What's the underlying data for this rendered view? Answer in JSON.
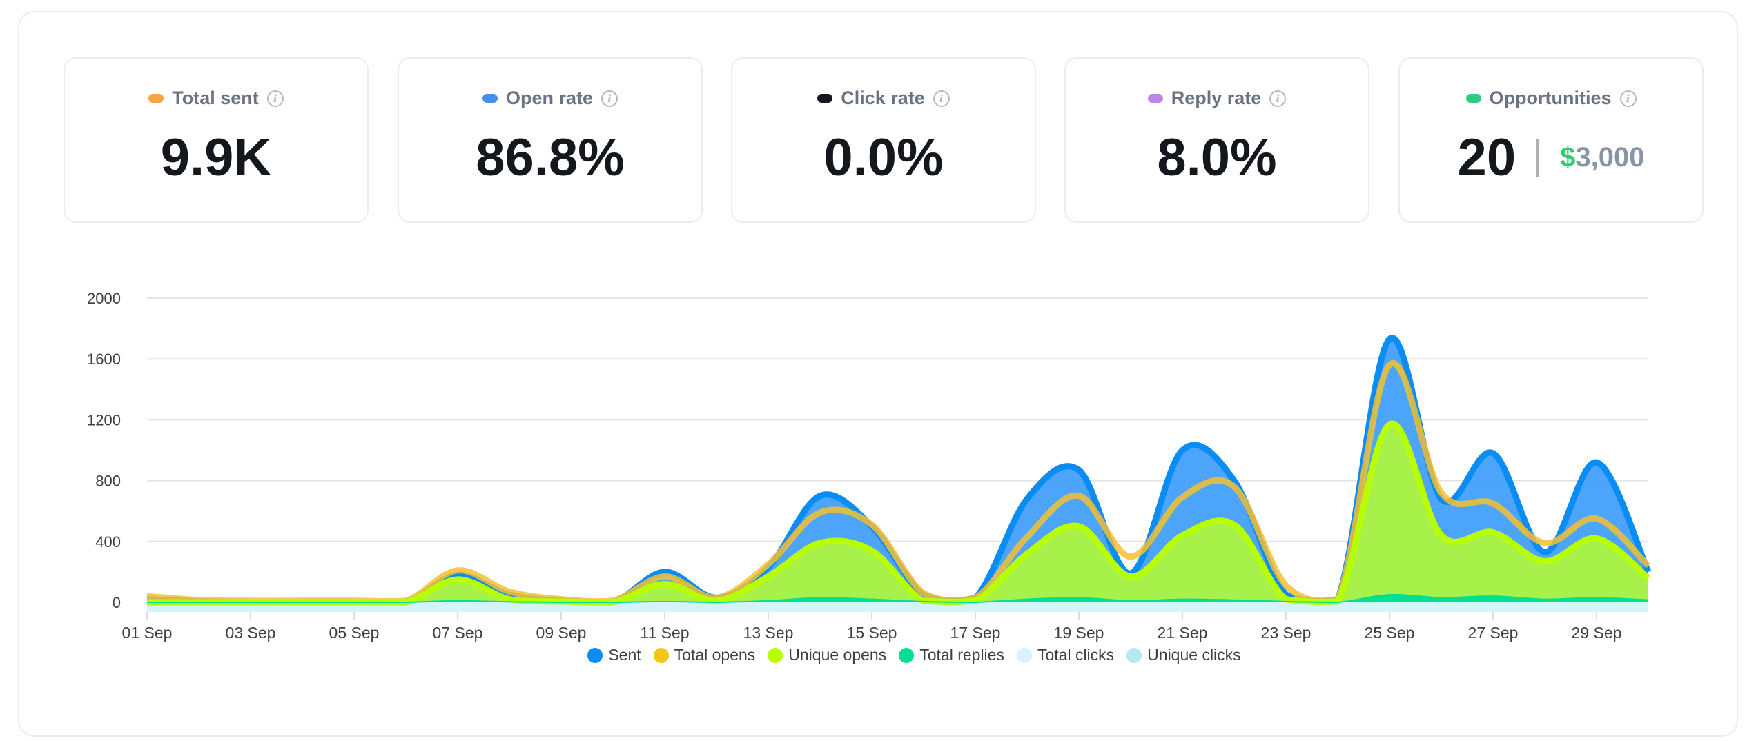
{
  "cards": [
    {
      "label": "Total sent",
      "value": "9.9K",
      "color": "#f2a541"
    },
    {
      "label": "Open rate",
      "value": "86.8%",
      "color": "#438ef0"
    },
    {
      "label": "Click rate",
      "value": "0.0%",
      "color": "#14171c"
    },
    {
      "label": "Reply rate",
      "value": "8.0%",
      "color": "#c084e8"
    },
    {
      "label": "Opportunities",
      "value": "20",
      "currency": "$",
      "amount": "3,000",
      "color": "#2ecc80"
    }
  ],
  "info_icon": "i",
  "chart_data": {
    "type": "area",
    "x": [
      "01 Sep",
      "02 Sep",
      "03 Sep",
      "04 Sep",
      "05 Sep",
      "06 Sep",
      "07 Sep",
      "08 Sep",
      "09 Sep",
      "10 Sep",
      "11 Sep",
      "12 Sep",
      "13 Sep",
      "14 Sep",
      "15 Sep",
      "16 Sep",
      "17 Sep",
      "18 Sep",
      "19 Sep",
      "20 Sep",
      "21 Sep",
      "22 Sep",
      "23 Sep",
      "24 Sep",
      "25 Sep",
      "26 Sep",
      "27 Sep",
      "28 Sep",
      "29 Sep",
      "30 Sep"
    ],
    "xticks": [
      "01 Sep",
      "03 Sep",
      "05 Sep",
      "07 Sep",
      "09 Sep",
      "11 Sep",
      "13 Sep",
      "15 Sep",
      "17 Sep",
      "19 Sep",
      "21 Sep",
      "23 Sep",
      "25 Sep",
      "27 Sep",
      "29 Sep"
    ],
    "yticks": [
      "0",
      "400",
      "800",
      "1200",
      "1600",
      "2000"
    ],
    "ylim": [
      0,
      2000
    ],
    "grid": true,
    "legend": "bottom",
    "series": [
      {
        "name": "Sent",
        "color": "#0a8cf5",
        "fill": "#42a0fa",
        "values": [
          20,
          5,
          0,
          0,
          0,
          0,
          180,
          50,
          10,
          0,
          200,
          30,
          230,
          700,
          500,
          50,
          30,
          680,
          870,
          190,
          1000,
          800,
          50,
          20,
          1730,
          680,
          980,
          330,
          920,
          200
        ]
      },
      {
        "name": "Total opens",
        "color": "#f5c030",
        "fill": "#e8b84a",
        "values": [
          40,
          15,
          10,
          10,
          10,
          10,
          210,
          70,
          20,
          10,
          170,
          30,
          250,
          590,
          510,
          60,
          30,
          430,
          700,
          300,
          690,
          760,
          110,
          20,
          1560,
          720,
          650,
          390,
          550,
          240
        ]
      },
      {
        "name": "Unique opens",
        "color": "#b8ff00",
        "fill": "#a8f04a",
        "values": [
          0,
          0,
          0,
          0,
          0,
          0,
          150,
          20,
          5,
          0,
          120,
          10,
          170,
          390,
          340,
          10,
          10,
          320,
          500,
          170,
          440,
          510,
          20,
          5,
          1170,
          440,
          460,
          270,
          420,
          160
        ]
      },
      {
        "name": "Total replies",
        "color": "#00e090",
        "fill": "#00e090",
        "values": [
          0,
          0,
          0,
          0,
          0,
          0,
          10,
          3,
          0,
          0,
          5,
          0,
          10,
          30,
          20,
          5,
          0,
          20,
          30,
          10,
          20,
          15,
          5,
          0,
          50,
          30,
          40,
          20,
          30,
          15
        ]
      },
      {
        "name": "Total clicks",
        "color": "#d4f4fa",
        "fill": "#d4f4fa",
        "values": [
          0,
          0,
          0,
          0,
          0,
          0,
          0,
          0,
          0,
          0,
          0,
          0,
          0,
          0,
          0,
          0,
          0,
          0,
          0,
          0,
          0,
          0,
          0,
          0,
          0,
          0,
          0,
          0,
          0,
          0
        ]
      },
      {
        "name": "Unique clicks",
        "color": "#b8e6f2",
        "fill": "#b8e6f2",
        "values": [
          0,
          0,
          0,
          0,
          0,
          0,
          0,
          0,
          0,
          0,
          0,
          0,
          0,
          0,
          0,
          0,
          0,
          0,
          0,
          0,
          0,
          0,
          0,
          0,
          0,
          0,
          0,
          0,
          0,
          0
        ]
      }
    ]
  }
}
